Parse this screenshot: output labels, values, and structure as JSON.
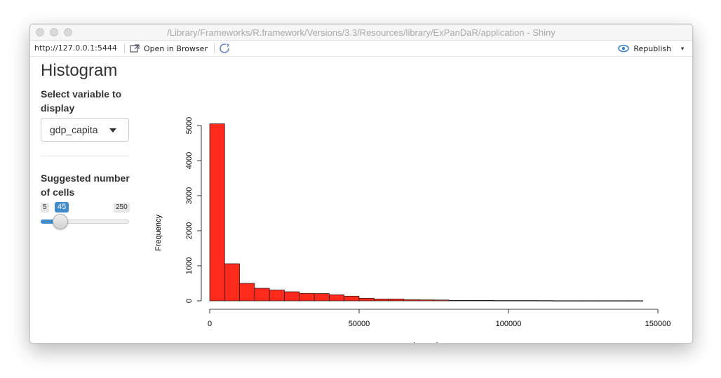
{
  "window": {
    "title": "/Library/Frameworks/R.framework/Versions/3.3/Resources/library/ExPanDaR/application - Shiny"
  },
  "toolbar": {
    "url": "http://127.0.0.1:5444",
    "open_in_browser": "Open in Browser",
    "republish": "Republish",
    "icons": [
      "open-browser-icon",
      "refresh-icon",
      "publish-icon",
      "chevron-down-icon"
    ]
  },
  "sidebar": {
    "app_title": "Histogram",
    "variable_label_line1": "Select variable to",
    "variable_label_line2": "display",
    "variable_selected": "gdp_capita",
    "cells_label_line1": "Suggested number",
    "cells_label_line2": "of cells",
    "slider": {
      "min": "5",
      "value": "45",
      "max": "250"
    }
  },
  "colors": {
    "bar_fill": "#ff2a1c",
    "slider_accent": "#428bca"
  },
  "chart_data": {
    "type": "bar",
    "title": "",
    "xlabel": "gdp_capita",
    "ylabel": "Frequency",
    "xlim": [
      0,
      150000
    ],
    "ylim": [
      0,
      5000
    ],
    "x_ticks": [
      0,
      50000,
      100000,
      150000
    ],
    "x_tick_labels": [
      "0",
      "50000",
      "100000",
      "150000"
    ],
    "y_ticks": [
      0,
      1000,
      2000,
      3000,
      4000,
      5000
    ],
    "y_tick_labels": [
      "0",
      "1000",
      "2000",
      "3000",
      "4000",
      "5000"
    ],
    "bin_width": 5000,
    "bin_starts": [
      0,
      5000,
      10000,
      15000,
      20000,
      25000,
      30000,
      35000,
      40000,
      45000,
      50000,
      55000,
      60000,
      65000,
      70000,
      75000,
      80000,
      85000,
      90000,
      95000,
      100000,
      105000,
      110000,
      115000,
      120000,
      125000,
      130000,
      135000,
      140000
    ],
    "values": [
      5050,
      1060,
      500,
      360,
      310,
      260,
      215,
      210,
      175,
      135,
      75,
      55,
      55,
      35,
      30,
      25,
      15,
      15,
      15,
      10,
      10,
      10,
      8,
      5,
      5,
      5,
      5,
      5,
      5
    ],
    "grid": false,
    "legend": "none"
  }
}
